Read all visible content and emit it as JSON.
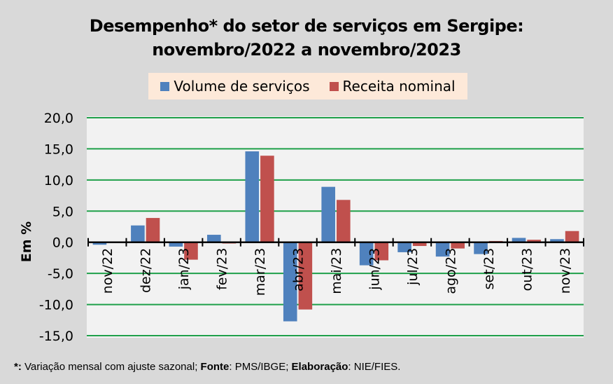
{
  "chart_data": {
    "type": "bar",
    "title_line1": "Desempenho* do setor de serviços em Sergipe:",
    "title_line2": "novembro/2022 a novembro/2023",
    "xlabel": "",
    "ylabel": "Em %",
    "ylim": [
      -15,
      20
    ],
    "yticks": [
      20,
      15,
      10,
      5,
      0,
      -5,
      -10,
      -15
    ],
    "ytick_labels": [
      "20,0",
      "15,0",
      "10,0",
      "5,0",
      "0,0",
      "-5,0",
      "-10,0",
      "-15,0"
    ],
    "grid": true,
    "legend_position": "top",
    "categories": [
      "nov/22",
      "dez/22",
      "jan/23",
      "fev/23",
      "mar/23",
      "abr/23",
      "mai/23",
      "jun/23",
      "jul/23",
      "ago/23",
      "set/23",
      "out/23",
      "nov/23"
    ],
    "series": [
      {
        "name": "Volume de serviços",
        "color": "#4f81bd",
        "values": [
          -0.4,
          2.7,
          -0.7,
          1.2,
          14.6,
          -12.7,
          8.9,
          -3.7,
          -1.6,
          -2.3,
          -1.9,
          0.7,
          0.5
        ]
      },
      {
        "name": "Receita nominal",
        "color": "#c0504d",
        "values": [
          0.0,
          3.9,
          -2.8,
          -0.2,
          13.9,
          -10.8,
          6.8,
          -2.9,
          -0.6,
          -1.0,
          0.2,
          0.4,
          1.8
        ]
      }
    ]
  },
  "colors": {
    "gridline": "#1fa04a",
    "background": "#d9d9d9",
    "plot_background": "#f2f2f2",
    "legend_background": "#fde9d9"
  },
  "footnote": {
    "star": "*:",
    "text1": " Variação mensal com ajuste sazonal; ",
    "fonte_label": "Fonte",
    "text2": ": PMS/IBGE; ",
    "elab_label": "Elaboração",
    "text3": ":  NIE/FIES."
  }
}
